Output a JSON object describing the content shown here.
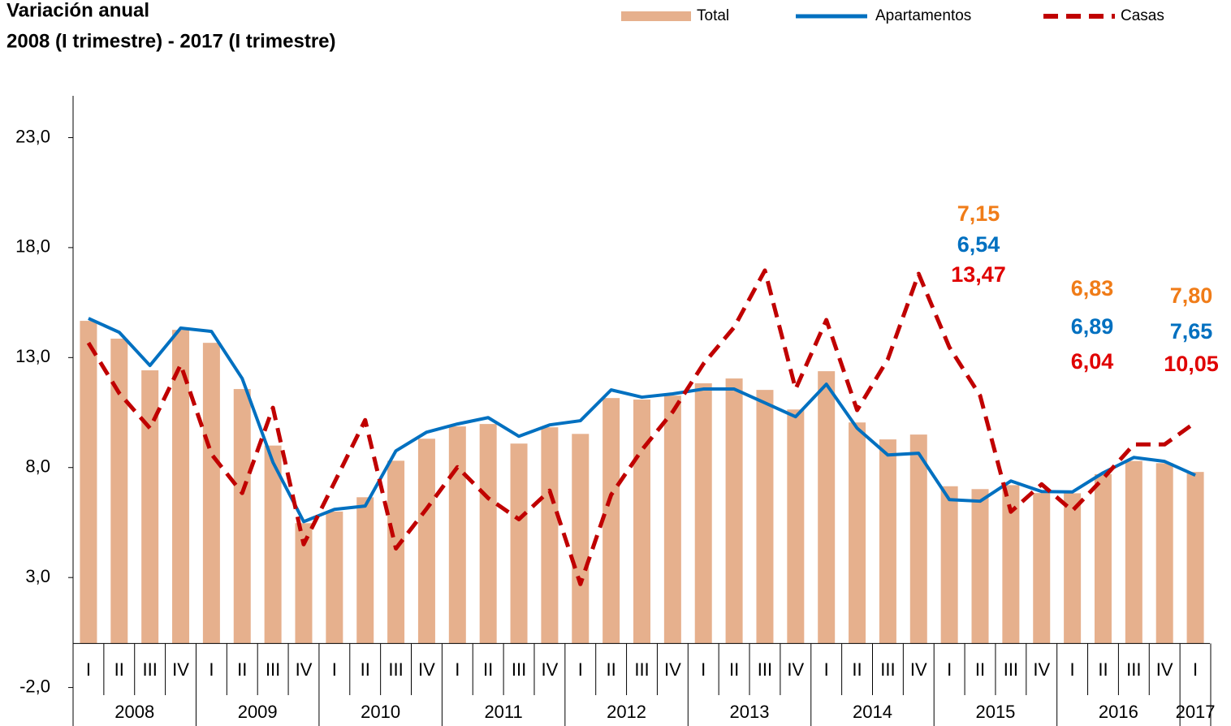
{
  "chart_data": {
    "type": "bar_line",
    "title": "Variación anual",
    "subtitle": "2008 (I trimestre) - 2017 (I trimestre)",
    "categories": [
      "I",
      "II",
      "III",
      "IV",
      "I",
      "II",
      "III",
      "IV",
      "I",
      "II",
      "III",
      "IV",
      "I",
      "II",
      "III",
      "IV",
      "I",
      "II",
      "III",
      "IV",
      "I",
      "II",
      "III",
      "IV",
      "I",
      "II",
      "III",
      "IV",
      "I",
      "II",
      "III",
      "IV",
      "I",
      "II",
      "III",
      "IV",
      "I"
    ],
    "years": [
      "2008",
      "2009",
      "2010",
      "2011",
      "2012",
      "2013",
      "2014",
      "2015",
      "2016",
      "2017"
    ],
    "ylim": [
      -3.75,
      24.9
    ],
    "yticks": [
      {
        "value": -2,
        "label": "-2,0"
      },
      {
        "value": 3,
        "label": "3,0"
      },
      {
        "value": 8,
        "label": "8,0"
      },
      {
        "value": 13,
        "label": "13,0"
      },
      {
        "value": 18,
        "label": "18,0"
      },
      {
        "value": 23,
        "label": "23,0"
      }
    ],
    "grid": false,
    "legend": "top-right",
    "series": [
      {
        "name": "Total",
        "type": "bar",
        "color": "#e6b08d",
        "label_color": "#f07c18",
        "values": [
          14.67,
          13.86,
          12.42,
          14.26,
          13.67,
          11.57,
          9.0,
          5.47,
          6.0,
          6.65,
          8.31,
          9.31,
          9.87,
          9.98,
          9.09,
          9.83,
          9.53,
          11.16,
          11.09,
          11.27,
          11.83,
          12.05,
          11.53,
          10.64,
          12.38,
          10.05,
          9.28,
          9.5,
          7.15,
          7.02,
          7.2,
          6.84,
          6.83,
          7.7,
          8.3,
          8.2,
          7.8
        ],
        "value_labels": [
          null,
          null,
          null,
          null,
          null,
          null,
          null,
          null,
          null,
          null,
          null,
          null,
          null,
          null,
          null,
          null,
          null,
          null,
          null,
          null,
          null,
          null,
          null,
          null,
          null,
          null,
          null,
          null,
          "7,15",
          null,
          null,
          null,
          "6,83",
          null,
          null,
          null,
          "7,80"
        ]
      },
      {
        "name": "Apartamentos",
        "type": "line",
        "color": "#0070c0",
        "label_color": "#0070c0",
        "values": [
          14.78,
          14.15,
          12.64,
          14.34,
          14.19,
          12.05,
          8.24,
          5.54,
          6.1,
          6.25,
          8.76,
          9.61,
          9.98,
          10.27,
          9.42,
          9.94,
          10.13,
          11.53,
          11.2,
          11.35,
          11.57,
          11.57,
          10.94,
          10.31,
          11.79,
          9.79,
          8.57,
          8.65,
          6.54,
          6.47,
          7.39,
          6.91,
          6.89,
          7.76,
          8.46,
          8.28,
          7.65
        ],
        "value_labels": [
          null,
          null,
          null,
          null,
          null,
          null,
          null,
          null,
          null,
          null,
          null,
          null,
          null,
          null,
          null,
          null,
          null,
          null,
          null,
          null,
          null,
          null,
          null,
          null,
          null,
          null,
          null,
          null,
          "6,54",
          null,
          null,
          null,
          "6,89",
          null,
          null,
          null,
          "7,65"
        ]
      },
      {
        "name": "Casas",
        "type": "dashed-line",
        "color": "#c00000",
        "label_color": "#e00000",
        "values": [
          13.67,
          11.38,
          9.79,
          12.68,
          8.61,
          6.84,
          10.72,
          4.51,
          7.32,
          10.16,
          4.32,
          6.13,
          8.02,
          6.61,
          5.65,
          6.95,
          2.7,
          6.76,
          8.8,
          10.53,
          12.71,
          14.38,
          16.96,
          11.57,
          14.71,
          10.61,
          12.93,
          16.81,
          13.47,
          11.27,
          5.99,
          7.24,
          6.04,
          7.5,
          9.05,
          9.05,
          10.05
        ],
        "value_labels": [
          null,
          null,
          null,
          null,
          null,
          null,
          null,
          null,
          null,
          null,
          null,
          null,
          null,
          null,
          null,
          null,
          null,
          null,
          null,
          null,
          null,
          null,
          null,
          null,
          null,
          null,
          null,
          null,
          "13,47",
          null,
          null,
          null,
          "6,04",
          null,
          null,
          null,
          "10,05"
        ]
      }
    ]
  }
}
